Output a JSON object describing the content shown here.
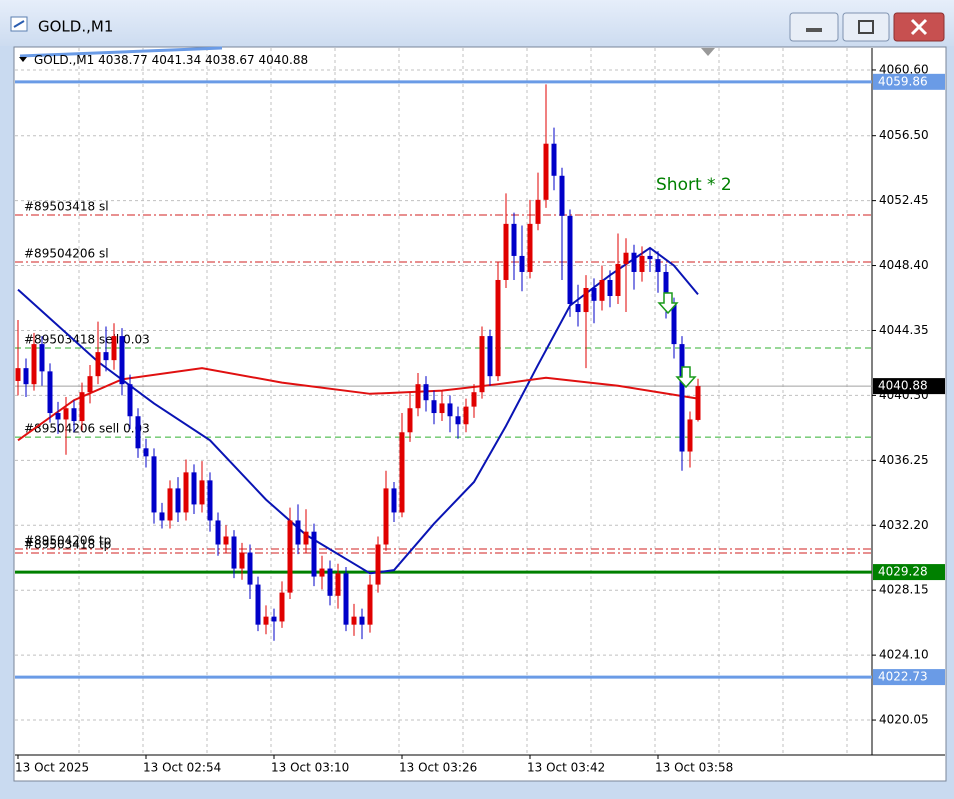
{
  "chart_data": {
    "type": "candlestick",
    "title": "GOLD.,M1",
    "annotation": {
      "text": "Short * 2",
      "color": "#008000"
    },
    "categories": [
      "13 Oct 2025",
      null,
      null,
      null,
      null,
      null,
      null,
      null,
      null,
      null,
      null,
      null,
      null,
      null,
      null,
      null,
      "13 Oct 02:54",
      null,
      null,
      null,
      null,
      null,
      null,
      null,
      null,
      null,
      null,
      null,
      null,
      null,
      null,
      null,
      "13 Oct 03:10",
      null,
      null,
      null,
      null,
      null,
      null,
      null,
      null,
      null,
      null,
      null,
      null,
      null,
      null,
      null,
      "13 Oct 03:26",
      null,
      null,
      null,
      null,
      null,
      null,
      null,
      null,
      null,
      null,
      null,
      null,
      null,
      null,
      null,
      "13 Oct 03:42",
      null,
      null,
      null,
      null,
      null,
      null,
      null,
      null,
      null,
      null,
      null,
      null,
      null,
      null,
      null,
      "13 Oct 03:58",
      null,
      null,
      null,
      null,
      null
    ],
    "open": [
      4041.2,
      4042.0,
      4041.0,
      4043.5,
      4041.8,
      4039.2,
      4038.8,
      4039.5,
      4038.7,
      4040.5,
      4041.5,
      4043.0,
      4042.5,
      4044.0,
      4041.0,
      4039.0,
      4037.0,
      4036.5,
      4033.0,
      4032.5,
      4034.5,
      4033.0,
      4035.5,
      4033.5,
      4035.0,
      4032.5,
      4031.0,
      4031.5,
      4029.5,
      4030.5,
      4028.5,
      4026.0,
      4026.5,
      4026.2,
      4028.0,
      4032.5,
      4031.0,
      4031.8,
      4029.0,
      4029.5,
      4027.8,
      4029.2,
      4026.0,
      4026.5,
      4026.0,
      4028.5,
      4031.0,
      4034.5,
      4033.0,
      4038.0,
      4039.5,
      4041.0,
      4040.0,
      4039.2,
      4039.8,
      4039.0,
      4038.5,
      4039.6,
      4040.5,
      4044.0,
      4041.5,
      4047.5,
      4051.0,
      4049.0,
      4048.0,
      4051.0,
      4052.5,
      4056.0,
      4054.0,
      4051.5,
      4046.0,
      4045.5,
      4047.0,
      4046.2,
      4047.5,
      4046.5,
      4048.5,
      4049.2,
      4048.0,
      4049.0,
      4048.8,
      4048.0,
      4046.0,
      4043.5,
      4036.8,
      4038.77
    ],
    "high": [
      4045.0,
      4042.6,
      4044.2,
      4044.0,
      4042.3,
      4039.9,
      4040.2,
      4040.0,
      4041.1,
      4042.2,
      4044.9,
      4044.6,
      4044.8,
      4044.5,
      4041.6,
      4039.5,
      4037.6,
      4037.0,
      4033.6,
      4035.0,
      4035.2,
      4036.3,
      4036.0,
      4036.2,
      4035.5,
      4033.0,
      4032.2,
      4031.9,
      4031.1,
      4031.0,
      4029.0,
      4027.2,
      4027.0,
      4028.7,
      4033.3,
      4033.5,
      4033.2,
      4032.3,
      4030.3,
      4030.0,
      4029.8,
      4029.6,
      4027.3,
      4027.0,
      4029.1,
      4031.5,
      4035.6,
      4034.9,
      4039.2,
      4040.5,
      4041.7,
      4041.5,
      4040.6,
      4040.6,
      4040.3,
      4039.6,
      4040.1,
      4041.0,
      4044.6,
      4044.4,
      4048.6,
      4052.9,
      4051.7,
      4050.9,
      4052.5,
      4054.2,
      4059.7,
      4057.0,
      4054.5,
      4051.9,
      4047.2,
      4047.8,
      4047.6,
      4048.4,
      4048.1,
      4050.4,
      4050.1,
      4049.7,
      4049.6,
      4049.5,
      4049.3,
      4048.5,
      4046.4,
      4044.0,
      4039.3,
      4041.34
    ],
    "low": [
      4040.3,
      4040.2,
      4040.6,
      4040.9,
      4038.6,
      4037.9,
      4036.6,
      4038.0,
      4038.1,
      4039.8,
      4041.0,
      4041.8,
      4041.9,
      4040.3,
      4038.2,
      4036.4,
      4035.8,
      4032.3,
      4032.0,
      4032.0,
      4032.4,
      4032.5,
      4032.9,
      4033.0,
      4031.8,
      4030.3,
      4030.5,
      4028.9,
      4028.8,
      4027.6,
      4025.6,
      4025.4,
      4025.0,
      4025.8,
      4027.6,
      4030.4,
      4030.5,
      4028.4,
      4028.2,
      4027.2,
      4027.0,
      4025.6,
      4025.3,
      4025.1,
      4025.5,
      4028.0,
      4030.6,
      4032.4,
      4032.7,
      4037.4,
      4039.0,
      4039.3,
      4038.5,
      4038.7,
      4038.0,
      4037.6,
      4038.0,
      4038.9,
      4040.1,
      4040.9,
      4041.2,
      4047.0,
      4047.5,
      4046.8,
      4047.6,
      4050.6,
      4052.0,
      4053.1,
      4047.5,
      4045.2,
      4044.6,
      4042.0,
      4044.8,
      4045.6,
      4045.8,
      4046.0,
      4045.5,
      4046.9,
      4047.4,
      4048.0,
      4046.7,
      4045.1,
      4042.6,
      4035.6,
      4035.8,
      4038.67
    ],
    "close": [
      4042.0,
      4041.0,
      4043.5,
      4041.8,
      4039.2,
      4038.8,
      4039.5,
      4038.7,
      4040.5,
      4041.5,
      4043.0,
      4042.5,
      4044.0,
      4041.0,
      4039.0,
      4037.0,
      4036.5,
      4033.0,
      4032.5,
      4034.5,
      4033.0,
      4035.5,
      4033.5,
      4035.0,
      4032.5,
      4031.0,
      4031.5,
      4029.5,
      4030.5,
      4028.5,
      4026.0,
      4026.5,
      4026.2,
      4028.0,
      4032.5,
      4031.0,
      4031.8,
      4029.0,
      4029.5,
      4027.8,
      4029.2,
      4026.0,
      4026.5,
      4026.0,
      4028.5,
      4031.0,
      4034.5,
      4033.0,
      4038.0,
      4039.5,
      4041.0,
      4040.0,
      4039.2,
      4039.8,
      4039.0,
      4038.5,
      4039.6,
      4040.5,
      4044.0,
      4041.5,
      4047.5,
      4051.0,
      4049.0,
      4048.0,
      4051.0,
      4052.5,
      4056.0,
      4054.0,
      4051.5,
      4046.0,
      4045.5,
      4047.0,
      4046.2,
      4047.5,
      4046.5,
      4048.5,
      4049.2,
      4048.0,
      4049.0,
      4048.8,
      4048.0,
      4046.0,
      4043.5,
      4036.8,
      4038.8,
      4040.88
    ],
    "up_color": "#e00000",
    "down_color": "#0000c8",
    "series": [
      {
        "color": "#0a14b4",
        "x": [
          0,
          10,
          17,
          24,
          31,
          36,
          41,
          44,
          47,
          52,
          57,
          61,
          65,
          69,
          74,
          79,
          82,
          85
        ],
        "values": [
          4046.9,
          4042.4,
          4039.8,
          4037.5,
          4033.8,
          4031.6,
          4030.1,
          4029.2,
          4029.4,
          4032.3,
          4034.9,
          4038.4,
          4042.2,
          4045.9,
          4047.8,
          4049.5,
          4048.4,
          4046.6
        ]
      },
      {
        "color": "#e01010",
        "x": [
          0,
          7,
          13,
          23,
          33,
          44,
          53,
          60,
          66,
          75,
          85
        ],
        "values": [
          4037.5,
          4040.0,
          4041.3,
          4042.0,
          4041.1,
          4040.4,
          4040.6,
          4041.0,
          4041.4,
          4040.9,
          4040.1
        ]
      }
    ],
    "levels": [
      {
        "value": 4059.86,
        "color": "#6a9be6"
      },
      {
        "value": 4029.28,
        "color": "#008000"
      },
      {
        "value": 4022.73,
        "color": "#6a9be6"
      }
    ],
    "orders": [
      {
        "text": "#89503418 sl",
        "value": 4051.55,
        "color": "#d02020",
        "style": "dashdot"
      },
      {
        "text": "#89504206 sl",
        "value": 4048.62,
        "color": "#d02020",
        "style": "dashdot"
      },
      {
        "text": "#89503418 sell 0.03",
        "value": 4043.26,
        "color": "#30b030",
        "style": "dash"
      },
      {
        "text": "#89504206 sell 0.03",
        "value": 4037.7,
        "color": "#30b030",
        "style": "dash"
      },
      {
        "text": "#89504206 tp",
        "value": 4030.72,
        "color": "#d02020",
        "style": "dashdot"
      },
      {
        "text": "#89503418 tp",
        "value": 4030.47,
        "color": "#d02020",
        "style": "dashdot"
      }
    ],
    "ylim": [
      4017.87,
      4061.97
    ],
    "yticks": [
      {
        "value": 4060.6,
        "label": "4060.60"
      },
      {
        "value": 4056.5,
        "label": "4056.50"
      },
      4052.45,
      {
        "value": 4048.4,
        "label": "4048.40"
      },
      4044.35,
      {
        "value": 4040.3,
        "label": "4040.30"
      },
      4036.25,
      {
        "value": 4032.2,
        "label": "4032.20"
      },
      4028.15,
      {
        "value": 4024.1,
        "label": "4024.10"
      },
      4020.05
    ],
    "grid": true
  }
}
